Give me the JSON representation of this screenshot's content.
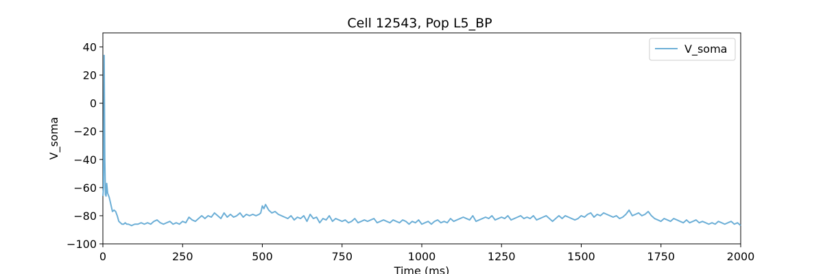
{
  "chart_data": {
    "type": "line",
    "title": "Cell 12543, Pop L5_BP",
    "xlabel": "Time (ms)",
    "ylabel": "V_soma",
    "xlim": [
      0,
      2000
    ],
    "ylim": [
      -100,
      50
    ],
    "xticks": [
      0,
      250,
      500,
      750,
      1000,
      1250,
      1500,
      1750,
      2000
    ],
    "yticks": [
      -100,
      -80,
      -60,
      -40,
      -20,
      0,
      20,
      40
    ],
    "grid": false,
    "legend": "top-right",
    "line_color": "#6baed6",
    "series": [
      {
        "name": "V_soma",
        "x": [
          0,
          2,
          4,
          6,
          8,
          10,
          12,
          15,
          20,
          25,
          30,
          35,
          40,
          45,
          50,
          55,
          60,
          65,
          70,
          75,
          80,
          90,
          100,
          110,
          120,
          130,
          140,
          150,
          160,
          170,
          180,
          190,
          200,
          210,
          220,
          230,
          240,
          250,
          260,
          270,
          280,
          290,
          300,
          310,
          320,
          330,
          340,
          350,
          360,
          370,
          380,
          390,
          400,
          410,
          420,
          430,
          440,
          450,
          460,
          470,
          480,
          490,
          495,
          500,
          505,
          510,
          520,
          530,
          540,
          550,
          560,
          570,
          580,
          590,
          600,
          610,
          620,
          630,
          640,
          650,
          660,
          670,
          680,
          690,
          700,
          710,
          720,
          730,
          740,
          750,
          760,
          770,
          780,
          790,
          800,
          810,
          820,
          830,
          840,
          850,
          860,
          870,
          880,
          890,
          900,
          910,
          920,
          930,
          940,
          950,
          960,
          970,
          980,
          990,
          1000,
          1010,
          1020,
          1030,
          1040,
          1050,
          1060,
          1070,
          1080,
          1090,
          1100,
          1110,
          1120,
          1130,
          1140,
          1150,
          1160,
          1170,
          1180,
          1190,
          1200,
          1210,
          1220,
          1230,
          1240,
          1250,
          1260,
          1270,
          1280,
          1290,
          1300,
          1310,
          1320,
          1330,
          1340,
          1350,
          1360,
          1370,
          1380,
          1390,
          1400,
          1410,
          1420,
          1430,
          1440,
          1450,
          1460,
          1470,
          1480,
          1490,
          1500,
          1510,
          1520,
          1530,
          1540,
          1550,
          1560,
          1570,
          1580,
          1590,
          1600,
          1610,
          1620,
          1630,
          1640,
          1650,
          1660,
          1670,
          1680,
          1690,
          1700,
          1710,
          1720,
          1730,
          1740,
          1750,
          1760,
          1770,
          1780,
          1790,
          1800,
          1810,
          1820,
          1830,
          1840,
          1850,
          1860,
          1870,
          1880,
          1890,
          1900,
          1910,
          1920,
          1930,
          1940,
          1950,
          1960,
          1970,
          1980,
          1990,
          2000
        ],
        "y": [
          -66,
          -60,
          34,
          -40,
          -65,
          -66,
          -57,
          -64,
          -67,
          -72,
          -77,
          -76,
          -77,
          -80,
          -84,
          -85,
          -86,
          -86,
          -85,
          -86,
          -86,
          -87,
          -86,
          -86,
          -85,
          -86,
          -85,
          -86,
          -84,
          -83,
          -85,
          -86,
          -85,
          -84,
          -86,
          -85,
          -86,
          -84,
          -85,
          -81,
          -83,
          -84,
          -82,
          -80,
          -82,
          -80,
          -81,
          -78,
          -80,
          -82,
          -78,
          -81,
          -79,
          -81,
          -80,
          -78,
          -81,
          -79,
          -80,
          -79,
          -80,
          -79,
          -78,
          -73,
          -75,
          -72,
          -76,
          -78,
          -77,
          -79,
          -80,
          -81,
          -82,
          -80,
          -83,
          -81,
          -82,
          -80,
          -84,
          -79,
          -82,
          -81,
          -85,
          -82,
          -83,
          -80,
          -84,
          -82,
          -83,
          -84,
          -83,
          -85,
          -84,
          -82,
          -85,
          -84,
          -83,
          -84,
          -83,
          -82,
          -85,
          -84,
          -83,
          -84,
          -85,
          -83,
          -84,
          -85,
          -83,
          -84,
          -86,
          -84,
          -85,
          -83,
          -86,
          -85,
          -84,
          -86,
          -84,
          -83,
          -85,
          -84,
          -85,
          -82,
          -84,
          -83,
          -82,
          -81,
          -82,
          -83,
          -80,
          -84,
          -83,
          -82,
          -81,
          -82,
          -80,
          -83,
          -82,
          -81,
          -82,
          -80,
          -83,
          -82,
          -81,
          -80,
          -82,
          -81,
          -82,
          -80,
          -83,
          -82,
          -81,
          -80,
          -82,
          -84,
          -82,
          -80,
          -82,
          -80,
          -81,
          -82,
          -83,
          -82,
          -80,
          -81,
          -79,
          -78,
          -81,
          -79,
          -80,
          -78,
          -79,
          -80,
          -81,
          -80,
          -82,
          -81,
          -79,
          -76,
          -80,
          -79,
          -78,
          -80,
          -79,
          -77,
          -80,
          -82,
          -83,
          -84,
          -82,
          -83,
          -84,
          -82,
          -83,
          -84,
          -85,
          -83,
          -85,
          -84,
          -83,
          -85,
          -84,
          -85,
          -86,
          -85,
          -86,
          -84,
          -85,
          -86,
          -85,
          -84,
          -86,
          -85,
          -87
        ]
      }
    ]
  }
}
